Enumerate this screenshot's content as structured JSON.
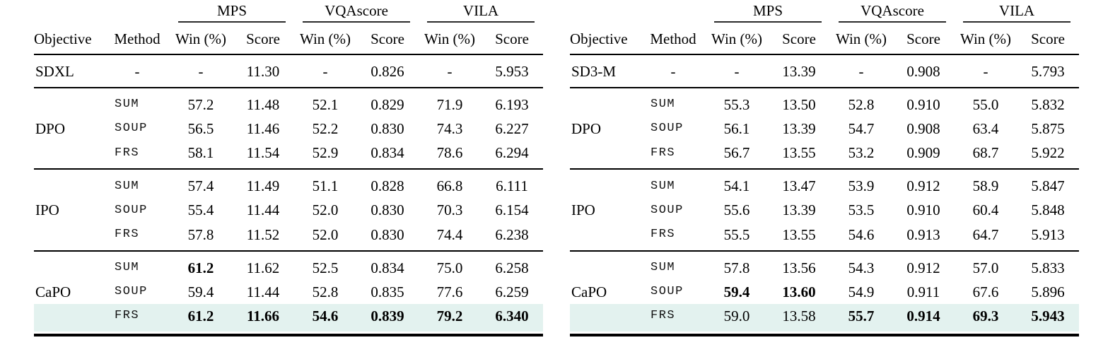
{
  "colors": {
    "highlight": "#e3f2ef",
    "rule": "#000000",
    "text": "#000000"
  },
  "tables": [
    {
      "id": "sdxl-results",
      "metric_groups": [
        "MPS",
        "VQAscore",
        "VILA"
      ],
      "headers": {
        "objective": "Objective",
        "method": "Method",
        "win": "Win (%)",
        "score": "Score"
      },
      "baseline_row": {
        "objective": "SDXL",
        "method": "-",
        "values": [
          "-",
          "11.30",
          "-",
          "0.826",
          "-",
          "5.953"
        ],
        "bold": [
          false,
          false,
          false,
          false,
          false,
          false
        ]
      },
      "groups": [
        {
          "objective": "DPO",
          "rows": [
            {
              "method": "SUM",
              "values": [
                "57.2",
                "11.48",
                "52.1",
                "0.829",
                "71.9",
                "6.193"
              ],
              "bold": [
                false,
                false,
                false,
                false,
                false,
                false
              ],
              "highlight": false
            },
            {
              "method": "SOUP",
              "values": [
                "56.5",
                "11.46",
                "52.2",
                "0.830",
                "74.3",
                "6.227"
              ],
              "bold": [
                false,
                false,
                false,
                false,
                false,
                false
              ],
              "highlight": false
            },
            {
              "method": "FRS",
              "values": [
                "58.1",
                "11.54",
                "52.9",
                "0.834",
                "78.6",
                "6.294"
              ],
              "bold": [
                false,
                false,
                false,
                false,
                false,
                false
              ],
              "highlight": false
            }
          ]
        },
        {
          "objective": "IPO",
          "rows": [
            {
              "method": "SUM",
              "values": [
                "57.4",
                "11.49",
                "51.1",
                "0.828",
                "66.8",
                "6.111"
              ],
              "bold": [
                false,
                false,
                false,
                false,
                false,
                false
              ],
              "highlight": false
            },
            {
              "method": "SOUP",
              "values": [
                "55.4",
                "11.44",
                "52.0",
                "0.830",
                "70.3",
                "6.154"
              ],
              "bold": [
                false,
                false,
                false,
                false,
                false,
                false
              ],
              "highlight": false
            },
            {
              "method": "FRS",
              "values": [
                "57.8",
                "11.52",
                "52.0",
                "0.830",
                "74.4",
                "6.238"
              ],
              "bold": [
                false,
                false,
                false,
                false,
                false,
                false
              ],
              "highlight": false
            }
          ]
        },
        {
          "objective": "CaPO",
          "rows": [
            {
              "method": "SUM",
              "values": [
                "61.2",
                "11.62",
                "52.5",
                "0.834",
                "75.0",
                "6.258"
              ],
              "bold": [
                true,
                false,
                false,
                false,
                false,
                false
              ],
              "highlight": false
            },
            {
              "method": "SOUP",
              "values": [
                "59.4",
                "11.44",
                "52.8",
                "0.835",
                "77.6",
                "6.259"
              ],
              "bold": [
                false,
                false,
                false,
                false,
                false,
                false
              ],
              "highlight": false
            },
            {
              "method": "FRS",
              "values": [
                "61.2",
                "11.66",
                "54.6",
                "0.839",
                "79.2",
                "6.340"
              ],
              "bold": [
                true,
                true,
                true,
                true,
                true,
                true
              ],
              "highlight": true
            }
          ]
        }
      ]
    },
    {
      "id": "sd3m-results",
      "metric_groups": [
        "MPS",
        "VQAscore",
        "VILA"
      ],
      "headers": {
        "objective": "Objective",
        "method": "Method",
        "win": "Win (%)",
        "score": "Score"
      },
      "baseline_row": {
        "objective": "SD3-M",
        "method": "-",
        "values": [
          "-",
          "13.39",
          "-",
          "0.908",
          "-",
          "5.793"
        ],
        "bold": [
          false,
          false,
          false,
          false,
          false,
          false
        ]
      },
      "groups": [
        {
          "objective": "DPO",
          "rows": [
            {
              "method": "SUM",
              "values": [
                "55.3",
                "13.50",
                "52.8",
                "0.910",
                "55.0",
                "5.832"
              ],
              "bold": [
                false,
                false,
                false,
                false,
                false,
                false
              ],
              "highlight": false
            },
            {
              "method": "SOUP",
              "values": [
                "56.1",
                "13.39",
                "54.7",
                "0.908",
                "63.4",
                "5.875"
              ],
              "bold": [
                false,
                false,
                false,
                false,
                false,
                false
              ],
              "highlight": false
            },
            {
              "method": "FRS",
              "values": [
                "56.7",
                "13.55",
                "53.2",
                "0.909",
                "68.7",
                "5.922"
              ],
              "bold": [
                false,
                false,
                false,
                false,
                false,
                false
              ],
              "highlight": false
            }
          ]
        },
        {
          "objective": "IPO",
          "rows": [
            {
              "method": "SUM",
              "values": [
                "54.1",
                "13.47",
                "53.9",
                "0.912",
                "58.9",
                "5.847"
              ],
              "bold": [
                false,
                false,
                false,
                false,
                false,
                false
              ],
              "highlight": false
            },
            {
              "method": "SOUP",
              "values": [
                "55.6",
                "13.39",
                "53.5",
                "0.910",
                "60.4",
                "5.848"
              ],
              "bold": [
                false,
                false,
                false,
                false,
                false,
                false
              ],
              "highlight": false
            },
            {
              "method": "FRS",
              "values": [
                "55.5",
                "13.55",
                "54.6",
                "0.913",
                "64.7",
                "5.913"
              ],
              "bold": [
                false,
                false,
                false,
                false,
                false,
                false
              ],
              "highlight": false
            }
          ]
        },
        {
          "objective": "CaPO",
          "rows": [
            {
              "method": "SUM",
              "values": [
                "57.8",
                "13.56",
                "54.3",
                "0.912",
                "57.0",
                "5.833"
              ],
              "bold": [
                false,
                false,
                false,
                false,
                false,
                false
              ],
              "highlight": false
            },
            {
              "method": "SOUP",
              "values": [
                "59.4",
                "13.60",
                "54.9",
                "0.911",
                "67.6",
                "5.896"
              ],
              "bold": [
                true,
                true,
                false,
                false,
                false,
                false
              ],
              "highlight": false
            },
            {
              "method": "FRS",
              "values": [
                "59.0",
                "13.58",
                "55.7",
                "0.914",
                "69.3",
                "5.943"
              ],
              "bold": [
                false,
                false,
                true,
                true,
                true,
                true
              ],
              "highlight": true
            }
          ]
        }
      ]
    }
  ]
}
